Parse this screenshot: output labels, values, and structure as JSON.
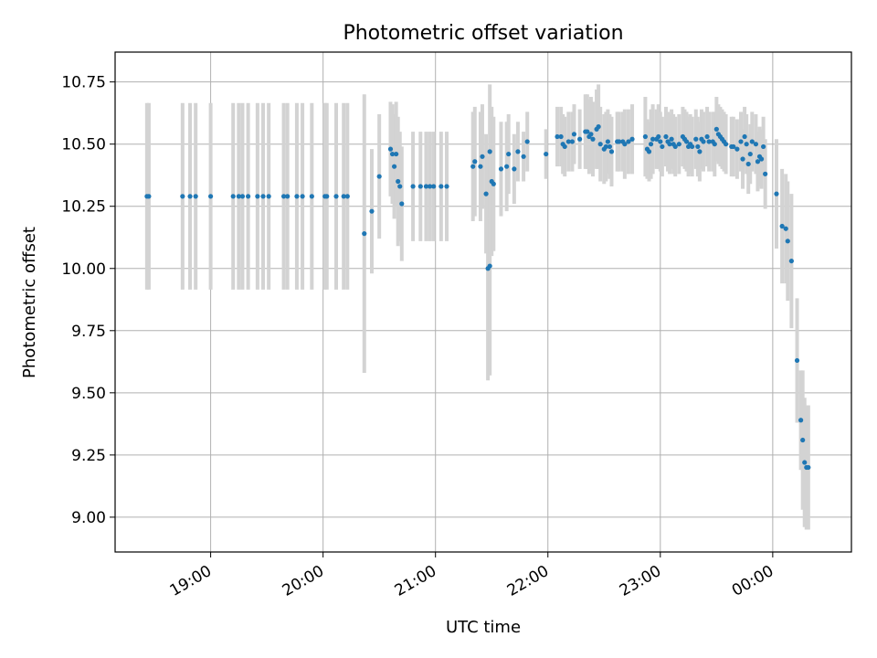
{
  "chart_data": {
    "type": "scatter",
    "title": "Photometric offset variation",
    "xlabel": "UTC time",
    "ylabel": "Photometric offset",
    "x_ticks": [
      "19:00",
      "20:00",
      "21:00",
      "22:00",
      "23:00",
      "00:00"
    ],
    "y_ticks": [
      "9.00",
      "9.25",
      "9.50",
      "9.75",
      "10.00",
      "10.25",
      "10.50",
      "10.75"
    ],
    "xlim": [
      "18:09",
      "00:42"
    ],
    "ylim": [
      8.86,
      10.87
    ],
    "grid": true,
    "colors": {
      "point": "#1f77b4",
      "errorbar": "#d3d3d3",
      "grid": "#b0b0b0"
    },
    "points": [
      [
        "18:26",
        10.29,
        0.375
      ],
      [
        "18:27",
        10.29,
        0.375
      ],
      [
        "18:45",
        10.29,
        0.375
      ],
      [
        "18:49",
        10.29,
        0.375
      ],
      [
        "18:52",
        10.29,
        0.375
      ],
      [
        "19:00",
        10.29,
        0.375
      ],
      [
        "19:12",
        10.29,
        0.375
      ],
      [
        "19:15",
        10.29,
        0.375
      ],
      [
        "19:17",
        10.29,
        0.375
      ],
      [
        "19:20",
        10.29,
        0.375
      ],
      [
        "19:25",
        10.29,
        0.375
      ],
      [
        "19:28",
        10.29,
        0.375
      ],
      [
        "19:31",
        10.29,
        0.375
      ],
      [
        "19:39",
        10.29,
        0.375
      ],
      [
        "19:41",
        10.29,
        0.375
      ],
      [
        "19:46",
        10.29,
        0.375
      ],
      [
        "19:49",
        10.29,
        0.375
      ],
      [
        "19:54",
        10.29,
        0.375
      ],
      [
        "20:01",
        10.29,
        0.375
      ],
      [
        "20:02",
        10.29,
        0.375
      ],
      [
        "20:07",
        10.29,
        0.375
      ],
      [
        "20:11",
        10.29,
        0.375
      ],
      [
        "20:13",
        10.29,
        0.375
      ],
      [
        "20:22",
        10.14,
        0.56
      ],
      [
        "20:26",
        10.23,
        0.25
      ],
      [
        "20:30",
        10.37,
        0.25
      ],
      [
        "20:36",
        10.48,
        0.19
      ],
      [
        "20:37",
        10.46,
        0.2
      ],
      [
        "20:38",
        10.41,
        0.21
      ],
      [
        "20:39",
        10.46,
        0.21
      ],
      [
        "20:40",
        10.35,
        0.26
      ],
      [
        "20:41",
        10.33,
        0.22
      ],
      [
        "20:42",
        10.26,
        0.23
      ],
      [
        "20:48",
        10.33,
        0.22
      ],
      [
        "20:52",
        10.33,
        0.22
      ],
      [
        "20:55",
        10.33,
        0.22
      ],
      [
        "20:57",
        10.33,
        0.22
      ],
      [
        "20:59",
        10.33,
        0.22
      ],
      [
        "21:03",
        10.33,
        0.22
      ],
      [
        "21:06",
        10.33,
        0.22
      ],
      [
        "21:20",
        10.41,
        0.22
      ],
      [
        "21:21",
        10.43,
        0.22
      ],
      [
        "21:24",
        10.41,
        0.22
      ],
      [
        "21:25",
        10.45,
        0.21
      ],
      [
        "21:27",
        10.3,
        0.24
      ],
      [
        "21:28",
        10.0,
        0.45
      ],
      [
        "21:29",
        10.01,
        0.44
      ],
      [
        "21:29",
        10.47,
        0.27
      ],
      [
        "21:30",
        10.35,
        0.3
      ],
      [
        "21:31",
        10.34,
        0.27
      ],
      [
        "21:35",
        10.4,
        0.19
      ],
      [
        "21:38",
        10.41,
        0.18
      ],
      [
        "21:39",
        10.46,
        0.16
      ],
      [
        "21:42",
        10.4,
        0.14
      ],
      [
        "21:44",
        10.47,
        0.12
      ],
      [
        "21:47",
        10.45,
        0.1
      ],
      [
        "21:49",
        10.51,
        0.12
      ],
      [
        "21:59",
        10.46,
        0.1
      ],
      [
        "22:05",
        10.53,
        0.12
      ],
      [
        "22:07",
        10.53,
        0.12
      ],
      [
        "22:08",
        10.5,
        0.12
      ],
      [
        "22:09",
        10.49,
        0.12
      ],
      [
        "22:11",
        10.51,
        0.12
      ],
      [
        "22:13",
        10.51,
        0.12
      ],
      [
        "22:14",
        10.54,
        0.12
      ],
      [
        "22:17",
        10.52,
        0.12
      ],
      [
        "22:20",
        10.55,
        0.15
      ],
      [
        "22:21",
        10.55,
        0.15
      ],
      [
        "22:22",
        10.53,
        0.15
      ],
      [
        "22:23",
        10.54,
        0.15
      ],
      [
        "22:24",
        10.52,
        0.15
      ],
      [
        "22:26",
        10.56,
        0.16
      ],
      [
        "22:27",
        10.57,
        0.17
      ],
      [
        "22:28",
        10.5,
        0.15
      ],
      [
        "22:30",
        10.48,
        0.14
      ],
      [
        "22:31",
        10.49,
        0.14
      ],
      [
        "22:32",
        10.51,
        0.13
      ],
      [
        "22:33",
        10.49,
        0.13
      ],
      [
        "22:34",
        10.47,
        0.14
      ],
      [
        "22:37",
        10.51,
        0.12
      ],
      [
        "22:38",
        10.51,
        0.12
      ],
      [
        "22:40",
        10.51,
        0.12
      ],
      [
        "22:41",
        10.5,
        0.14
      ],
      [
        "22:43",
        10.51,
        0.13
      ],
      [
        "22:45",
        10.52,
        0.14
      ],
      [
        "22:52",
        10.53,
        0.16
      ],
      [
        "22:53",
        10.48,
        0.12
      ],
      [
        "22:54",
        10.47,
        0.12
      ],
      [
        "22:55",
        10.5,
        0.14
      ],
      [
        "22:56",
        10.52,
        0.14
      ],
      [
        "22:58",
        10.52,
        0.12
      ],
      [
        "22:59",
        10.53,
        0.13
      ],
      [
        "23:00",
        10.51,
        0.12
      ],
      [
        "23:01",
        10.49,
        0.12
      ],
      [
        "23:03",
        10.53,
        0.12
      ],
      [
        "23:04",
        10.51,
        0.12
      ],
      [
        "23:05",
        10.5,
        0.12
      ],
      [
        "23:06",
        10.52,
        0.12
      ],
      [
        "23:07",
        10.5,
        0.12
      ],
      [
        "23:08",
        10.49,
        0.12
      ],
      [
        "23:10",
        10.5,
        0.12
      ],
      [
        "23:12",
        10.53,
        0.12
      ],
      [
        "23:13",
        10.52,
        0.12
      ],
      [
        "23:14",
        10.51,
        0.12
      ],
      [
        "23:15",
        10.49,
        0.12
      ],
      [
        "23:16",
        10.5,
        0.12
      ],
      [
        "23:17",
        10.49,
        0.12
      ],
      [
        "23:19",
        10.52,
        0.12
      ],
      [
        "23:20",
        10.49,
        0.12
      ],
      [
        "23:21",
        10.47,
        0.12
      ],
      [
        "23:22",
        10.52,
        0.12
      ],
      [
        "23:23",
        10.51,
        0.12
      ],
      [
        "23:25",
        10.53,
        0.12
      ],
      [
        "23:26",
        10.51,
        0.12
      ],
      [
        "23:28",
        10.51,
        0.12
      ],
      [
        "23:29",
        10.5,
        0.13
      ],
      [
        "23:30",
        10.56,
        0.13
      ],
      [
        "23:31",
        10.54,
        0.12
      ],
      [
        "23:32",
        10.53,
        0.12
      ],
      [
        "23:33",
        10.52,
        0.12
      ],
      [
        "23:34",
        10.51,
        0.12
      ],
      [
        "23:35",
        10.5,
        0.12
      ],
      [
        "23:38",
        10.49,
        0.12
      ],
      [
        "23:39",
        10.49,
        0.12
      ],
      [
        "23:41",
        10.48,
        0.12
      ],
      [
        "23:43",
        10.51,
        0.12
      ],
      [
        "23:44",
        10.44,
        0.12
      ],
      [
        "23:45",
        10.53,
        0.12
      ],
      [
        "23:46",
        10.5,
        0.12
      ],
      [
        "23:47",
        10.42,
        0.12
      ],
      [
        "23:48",
        10.46,
        0.12
      ],
      [
        "23:49",
        10.51,
        0.12
      ],
      [
        "23:51",
        10.5,
        0.12
      ],
      [
        "23:52",
        10.43,
        0.12
      ],
      [
        "23:53",
        10.45,
        0.12
      ],
      [
        "23:54",
        10.44,
        0.12
      ],
      [
        "23:55",
        10.49,
        0.12
      ],
      [
        "23:56",
        10.38,
        0.14
      ],
      [
        "00:02",
        10.3,
        0.22
      ],
      [
        "00:05",
        10.17,
        0.23
      ],
      [
        "00:07",
        10.16,
        0.22
      ],
      [
        "00:08",
        10.11,
        0.24
      ],
      [
        "00:10",
        10.03,
        0.27
      ],
      [
        "00:13",
        9.63,
        0.25
      ],
      [
        "00:15",
        9.39,
        0.2
      ],
      [
        "00:16",
        9.31,
        0.28
      ],
      [
        "00:17",
        9.22,
        0.26
      ],
      [
        "00:18",
        9.2,
        0.25
      ],
      [
        "00:19",
        9.2,
        0.25
      ]
    ]
  }
}
